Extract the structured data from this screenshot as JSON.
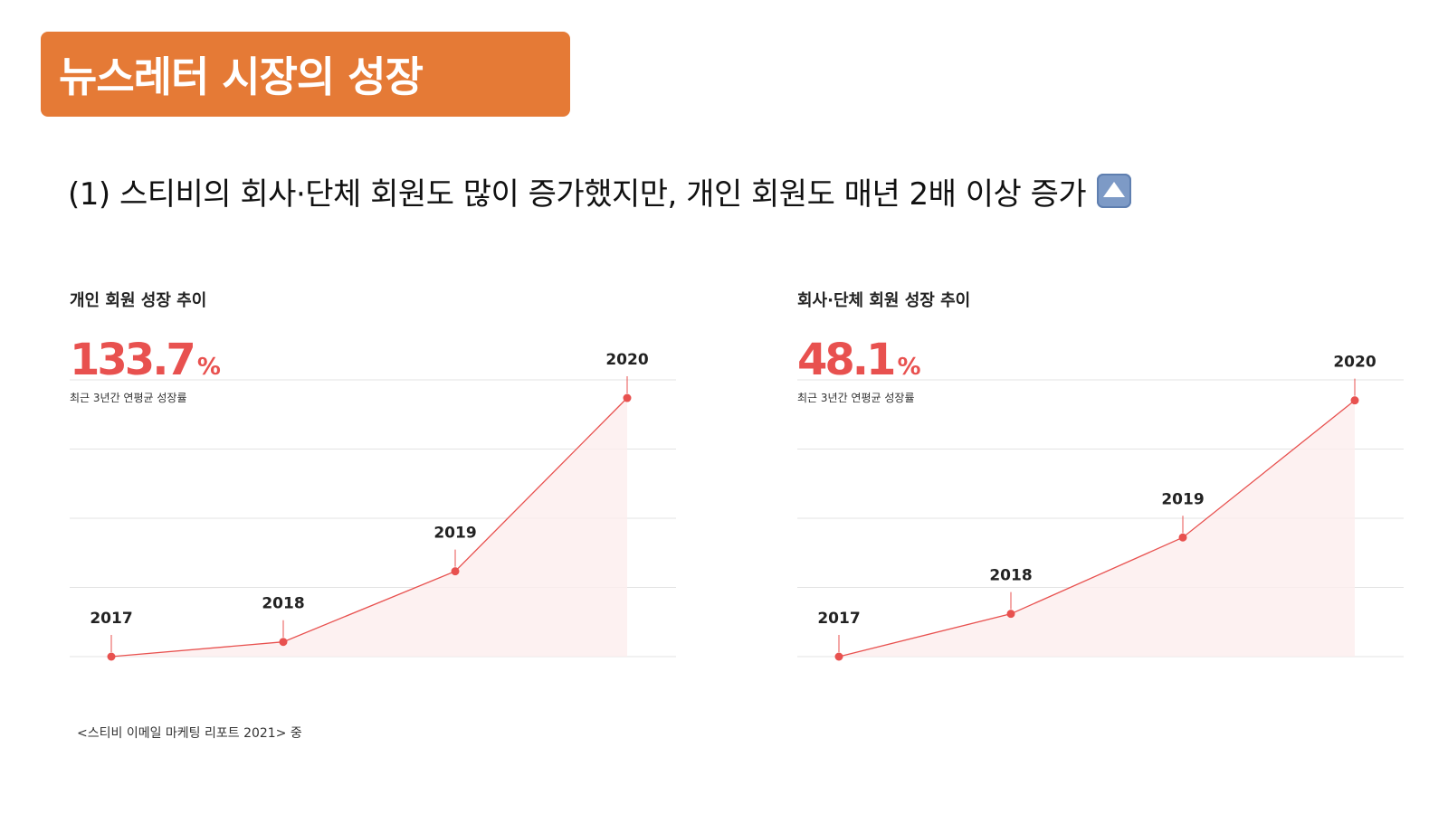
{
  "header": {
    "title": "뉴스레터 시장의 성장",
    "banner_color": "#e57a36"
  },
  "subtitle": {
    "text": "(1) 스티비의 회사·단체 회원도 많이 증가했지만, 개인 회원도 매년 2배 이상 증가",
    "icon": "up-arrow-button-icon"
  },
  "accent_color": "#e8514f",
  "chart_data": [
    {
      "type": "area",
      "title": "개인 회원 성장 추이",
      "stat": {
        "value": "133.7",
        "unit": "%",
        "caption": "최근 3년간 연평균 성장률"
      },
      "categories": [
        "2017",
        "2018",
        "2019",
        "2020"
      ],
      "values": [
        0,
        5.7,
        33,
        100
      ],
      "ylim": [
        0,
        107
      ],
      "grid": true,
      "color": "#e8514f"
    },
    {
      "type": "area",
      "title": "회사·단체 회원 성장 추이",
      "stat": {
        "value": "48.1",
        "unit": "%",
        "caption": "최근 3년간 연평균 성장률"
      },
      "categories": [
        "2017",
        "2018",
        "2019",
        "2020"
      ],
      "values": [
        0,
        16.7,
        46.5,
        100
      ],
      "ylim": [
        0,
        108
      ],
      "grid": true,
      "color": "#e8514f"
    }
  ],
  "footer": {
    "source": "<스티비 이메일 마케팅 리포트 2021> 중"
  }
}
